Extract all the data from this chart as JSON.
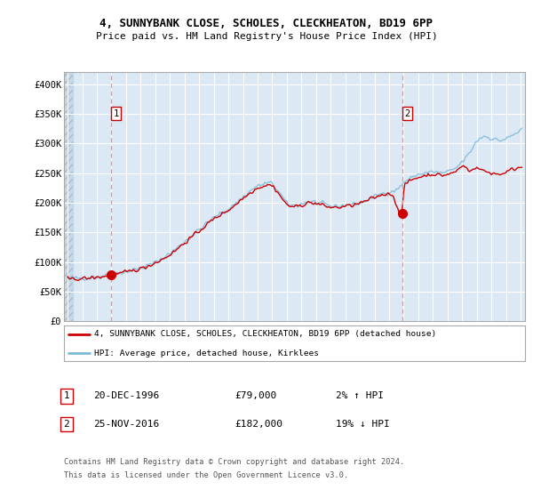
{
  "title1": "4, SUNNYBANK CLOSE, SCHOLES, CLECKHEATON, BD19 6PP",
  "title2": "Price paid vs. HM Land Registry's House Price Index (HPI)",
  "sale1_date": "20-DEC-1996",
  "sale1_price": 79000,
  "sale1_label": "1",
  "sale1_year": 1996.97,
  "sale2_date": "25-NOV-2016",
  "sale2_price": 182000,
  "sale2_label": "2",
  "sale2_year": 2016.9,
  "legend_line1": "4, SUNNYBANK CLOSE, SCHOLES, CLECKHEATON, BD19 6PP (detached house)",
  "legend_line2": "HPI: Average price, detached house, Kirklees",
  "table_row1": [
    "1",
    "20-DEC-1996",
    "£79,000",
    "2% ↑ HPI"
  ],
  "table_row2": [
    "2",
    "25-NOV-2016",
    "£182,000",
    "19% ↓ HPI"
  ],
  "footnote1": "Contains HM Land Registry data © Crown copyright and database right 2024.",
  "footnote2": "This data is licensed under the Open Government Licence v3.0.",
  "hpi_color": "#7db8d8",
  "price_color": "#cc0000",
  "plot_bg": "#dce9f5",
  "grid_color": "#ffffff",
  "dashed_color": "#ff6666",
  "ylim": [
    0,
    420000
  ],
  "yticks": [
    0,
    50000,
    100000,
    150000,
    200000,
    250000,
    300000,
    350000,
    400000
  ],
  "ytick_labels": [
    "£0",
    "£50K",
    "£100K",
    "£150K",
    "£200K",
    "£250K",
    "£300K",
    "£350K",
    "£400K"
  ],
  "hpi_key_points": [
    [
      1994.0,
      72000
    ],
    [
      1995.0,
      73000
    ],
    [
      1996.0,
      75000
    ],
    [
      1997.0,
      79000
    ],
    [
      1998.0,
      84000
    ],
    [
      1999.0,
      90000
    ],
    [
      2000.0,
      100000
    ],
    [
      2001.0,
      115000
    ],
    [
      2002.0,
      135000
    ],
    [
      2003.0,
      155000
    ],
    [
      2004.0,
      175000
    ],
    [
      2005.0,
      190000
    ],
    [
      2006.0,
      210000
    ],
    [
      2007.0,
      228000
    ],
    [
      2007.8,
      233000
    ],
    [
      2008.5,
      215000
    ],
    [
      2009.0,
      198000
    ],
    [
      2009.5,
      195000
    ],
    [
      2010.0,
      198000
    ],
    [
      2010.5,
      202000
    ],
    [
      2011.0,
      200000
    ],
    [
      2011.5,
      197000
    ],
    [
      2012.0,
      194000
    ],
    [
      2012.5,
      194000
    ],
    [
      2013.0,
      196000
    ],
    [
      2013.5,
      197000
    ],
    [
      2014.0,
      200000
    ],
    [
      2014.5,
      205000
    ],
    [
      2015.0,
      210000
    ],
    [
      2015.5,
      215000
    ],
    [
      2016.0,
      218000
    ],
    [
      2016.5,
      222000
    ],
    [
      2017.0,
      235000
    ],
    [
      2017.5,
      242000
    ],
    [
      2018.0,
      248000
    ],
    [
      2018.5,
      250000
    ],
    [
      2019.0,
      252000
    ],
    [
      2019.5,
      250000
    ],
    [
      2020.0,
      252000
    ],
    [
      2020.5,
      258000
    ],
    [
      2021.0,
      270000
    ],
    [
      2021.5,
      285000
    ],
    [
      2022.0,
      305000
    ],
    [
      2022.5,
      312000
    ],
    [
      2023.0,
      308000
    ],
    [
      2023.5,
      305000
    ],
    [
      2024.0,
      308000
    ],
    [
      2024.5,
      315000
    ],
    [
      2025.0,
      322000
    ]
  ],
  "prop_key_points": [
    [
      1994.0,
      71000
    ],
    [
      1995.0,
      72000
    ],
    [
      1996.0,
      74000
    ],
    [
      1997.0,
      78000
    ],
    [
      1998.0,
      83000
    ],
    [
      1999.0,
      89000
    ],
    [
      2000.0,
      99000
    ],
    [
      2001.0,
      113000
    ],
    [
      2002.0,
      133000
    ],
    [
      2003.0,
      153000
    ],
    [
      2004.0,
      173000
    ],
    [
      2005.0,
      188000
    ],
    [
      2006.0,
      208000
    ],
    [
      2007.0,
      225000
    ],
    [
      2007.8,
      230000
    ],
    [
      2008.5,
      212000
    ],
    [
      2009.0,
      196000
    ],
    [
      2009.5,
      193000
    ],
    [
      2010.0,
      196000
    ],
    [
      2010.5,
      200000
    ],
    [
      2011.0,
      198000
    ],
    [
      2011.5,
      195000
    ],
    [
      2012.0,
      192000
    ],
    [
      2012.5,
      192000
    ],
    [
      2013.0,
      194000
    ],
    [
      2013.5,
      196000
    ],
    [
      2014.0,
      199000
    ],
    [
      2014.5,
      204000
    ],
    [
      2015.0,
      209000
    ],
    [
      2015.5,
      213000
    ],
    [
      2016.0,
      216000
    ],
    [
      2016.83,
      182000
    ],
    [
      2017.0,
      228000
    ],
    [
      2017.5,
      238000
    ],
    [
      2018.0,
      243000
    ],
    [
      2018.5,
      246000
    ],
    [
      2019.0,
      248000
    ],
    [
      2019.5,
      246000
    ],
    [
      2020.0,
      248000
    ],
    [
      2020.5,
      252000
    ],
    [
      2021.0,
      262000
    ],
    [
      2021.5,
      255000
    ],
    [
      2022.0,
      258000
    ],
    [
      2022.5,
      253000
    ],
    [
      2023.0,
      250000
    ],
    [
      2023.5,
      248000
    ],
    [
      2024.0,
      252000
    ],
    [
      2024.5,
      257000
    ],
    [
      2025.0,
      260000
    ]
  ]
}
